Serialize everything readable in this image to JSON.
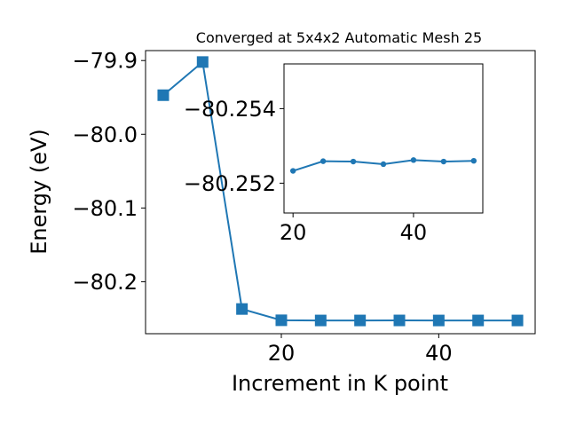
{
  "chart_data": [
    {
      "type": "line",
      "title": "Converged at 5x4x2 Automatic Mesh 25",
      "xlabel": "Increment in K point",
      "ylabel": "Energy (eV)",
      "x": [
        5,
        10,
        15,
        20,
        25,
        30,
        35,
        40,
        45,
        50
      ],
      "series": [
        {
          "values": [
            -79.947,
            -79.902,
            -80.237,
            -80.2523,
            -80.25254,
            -80.25253,
            -80.25249,
            -80.25255,
            -80.25253,
            -80.25254
          ]
        }
      ],
      "xlim": [
        2.75,
        52.25
      ],
      "ylim": [
        -80.2705,
        -79.8865
      ],
      "xticks": [
        20,
        40
      ],
      "yticks": [
        -79.9,
        -80.0,
        -80.1,
        -80.2
      ],
      "xtick_labels": [
        "20",
        "40"
      ],
      "ytick_labels": [
        "−79.9",
        "−80.0",
        "−80.1",
        "−80.2"
      ],
      "marker": "square",
      "color": "#1f77b4",
      "grid": false
    },
    {
      "type": "line",
      "role": "inset",
      "x": [
        20,
        25,
        30,
        35,
        40,
        45,
        50
      ],
      "series": [
        {
          "values": [
            -80.25233,
            -80.25259,
            -80.25258,
            -80.25251,
            -80.25262,
            -80.25258,
            -80.2526
          ]
        }
      ],
      "xlim": [
        18.5,
        51.5
      ],
      "ylim": [
        -80.2512,
        -80.2552
      ],
      "xticks": [
        20,
        40
      ],
      "yticks": [
        -80.254,
        -80.252
      ],
      "xtick_labels": [
        "20",
        "40"
      ],
      "ytick_labels": [
        "−80.254",
        "−80.252"
      ],
      "marker": "circle",
      "color": "#1f77b4",
      "grid": false
    }
  ]
}
